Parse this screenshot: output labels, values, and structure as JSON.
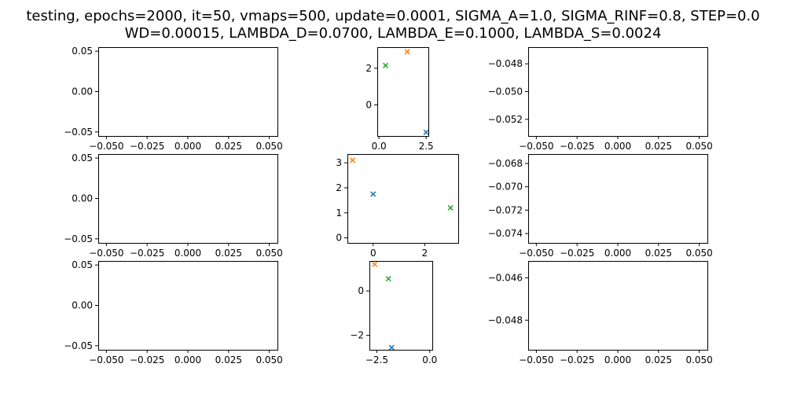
{
  "figure": {
    "title_line1": "testing, epochs=2000, it=50, vmaps=500, update=0.0001, SIGMA_A=1.0, SIGMA_RINF=0.8, STEP=0.0",
    "title_line2": "WD=0.00015, LAMBDA_D=0.0700, LAMBDA_E=0.1000, LAMBDA_S=0.0024"
  },
  "colors": {
    "blue": "#1f77b4",
    "orange": "#ff7f0e",
    "green": "#2ca02c"
  },
  "chart_data": [
    {
      "type": "scatter",
      "xlim": [
        -0.055,
        0.055
      ],
      "ylim": [
        -0.055,
        0.055
      ],
      "xticks": [
        -0.05,
        -0.025,
        0.0,
        0.025,
        0.05
      ],
      "xtick_labels": [
        "−0.050",
        "−0.025",
        "0.000",
        "0.025",
        "0.050"
      ],
      "yticks": [
        -0.05,
        0.0,
        0.05
      ],
      "ytick_labels": [
        "−0.05",
        "0.00",
        "0.05"
      ],
      "points": []
    },
    {
      "type": "scatter",
      "xlim": [
        -0.09,
        2.62
      ],
      "ylim": [
        -1.7,
        3.15
      ],
      "xticks": [
        0.0,
        2.5
      ],
      "xtick_labels": [
        "0.0",
        "2.5"
      ],
      "yticks": [
        0,
        2
      ],
      "ytick_labels": [
        "0",
        "2"
      ],
      "points": [
        {
          "x": 2.5,
          "y": -1.5,
          "color": "blue"
        },
        {
          "x": 1.5,
          "y": 2.9,
          "color": "orange"
        },
        {
          "x": 0.35,
          "y": 2.15,
          "color": "green"
        }
      ]
    },
    {
      "type": "scatter",
      "xlim": [
        -0.055,
        0.055
      ],
      "ylim": [
        -0.0532,
        -0.0468
      ],
      "xticks": [
        -0.05,
        -0.025,
        0.0,
        0.025,
        0.05
      ],
      "xtick_labels": [
        "−0.050",
        "−0.025",
        "0.000",
        "0.025",
        "0.050"
      ],
      "yticks": [
        -0.048,
        -0.05,
        -0.052
      ],
      "ytick_labels": [
        "−0.048",
        "−0.050",
        "−0.052"
      ],
      "points": []
    },
    {
      "type": "scatter",
      "xlim": [
        -0.055,
        0.055
      ],
      "ylim": [
        -0.055,
        0.055
      ],
      "xticks": [
        -0.05,
        -0.025,
        0.0,
        0.025,
        0.05
      ],
      "xtick_labels": [
        "−0.050",
        "−0.025",
        "0.000",
        "0.025",
        "0.050"
      ],
      "yticks": [
        -0.05,
        0.0,
        0.05
      ],
      "ytick_labels": [
        "−0.05",
        "0.00",
        "0.05"
      ],
      "points": []
    },
    {
      "type": "scatter",
      "xlim": [
        -1.0,
        3.3
      ],
      "ylim": [
        -0.2,
        3.35
      ],
      "xticks": [
        0,
        2
      ],
      "xtick_labels": [
        "0",
        "2"
      ],
      "yticks": [
        0,
        1,
        2,
        3
      ],
      "ytick_labels": [
        "0",
        "1",
        "2",
        "3"
      ],
      "points": [
        {
          "x": 0.0,
          "y": 1.75,
          "color": "blue"
        },
        {
          "x": -0.8,
          "y": 3.1,
          "color": "orange"
        },
        {
          "x": 3.0,
          "y": 1.2,
          "color": "green"
        }
      ]
    },
    {
      "type": "scatter",
      "xlim": [
        -0.055,
        0.055
      ],
      "ylim": [
        -0.0748,
        -0.0672
      ],
      "xticks": [
        -0.05,
        -0.025,
        0.0,
        0.025,
        0.05
      ],
      "xtick_labels": [
        "−0.050",
        "−0.025",
        "0.000",
        "0.025",
        "0.050"
      ],
      "yticks": [
        -0.068,
        -0.07,
        -0.072,
        -0.074
      ],
      "ytick_labels": [
        "−0.068",
        "−0.070",
        "−0.072",
        "−0.074"
      ],
      "points": []
    },
    {
      "type": "scatter",
      "xlim": [
        -0.055,
        0.055
      ],
      "ylim": [
        -0.055,
        0.055
      ],
      "xticks": [
        -0.05,
        -0.025,
        0.0,
        0.025,
        0.05
      ],
      "xtick_labels": [
        "−0.050",
        "−0.025",
        "0.000",
        "0.025",
        "0.050"
      ],
      "yticks": [
        -0.05,
        0.0,
        0.05
      ],
      "ytick_labels": [
        "−0.05",
        "0.00",
        "0.05"
      ],
      "points": []
    },
    {
      "type": "scatter",
      "xlim": [
        -2.85,
        0.12
      ],
      "ylim": [
        -2.65,
        1.35
      ],
      "xticks": [
        -2.5,
        0.0
      ],
      "xtick_labels": [
        "−2.5",
        "0.0"
      ],
      "yticks": [
        0,
        -2
      ],
      "ytick_labels": [
        "0",
        "−2"
      ],
      "points": [
        {
          "x": -1.8,
          "y": -2.55,
          "color": "blue"
        },
        {
          "x": -2.6,
          "y": 1.2,
          "color": "orange"
        },
        {
          "x": -1.95,
          "y": 0.55,
          "color": "green"
        }
      ]
    },
    {
      "type": "scatter",
      "xlim": [
        -0.055,
        0.055
      ],
      "ylim": [
        -0.0494,
        -0.0452
      ],
      "xticks": [
        -0.05,
        -0.025,
        0.0,
        0.025,
        0.05
      ],
      "xtick_labels": [
        "−0.050",
        "−0.025",
        "0.000",
        "0.025",
        "0.050"
      ],
      "yticks": [
        -0.046,
        -0.048
      ],
      "ytick_labels": [
        "−0.046",
        "−0.048"
      ],
      "points": []
    }
  ]
}
